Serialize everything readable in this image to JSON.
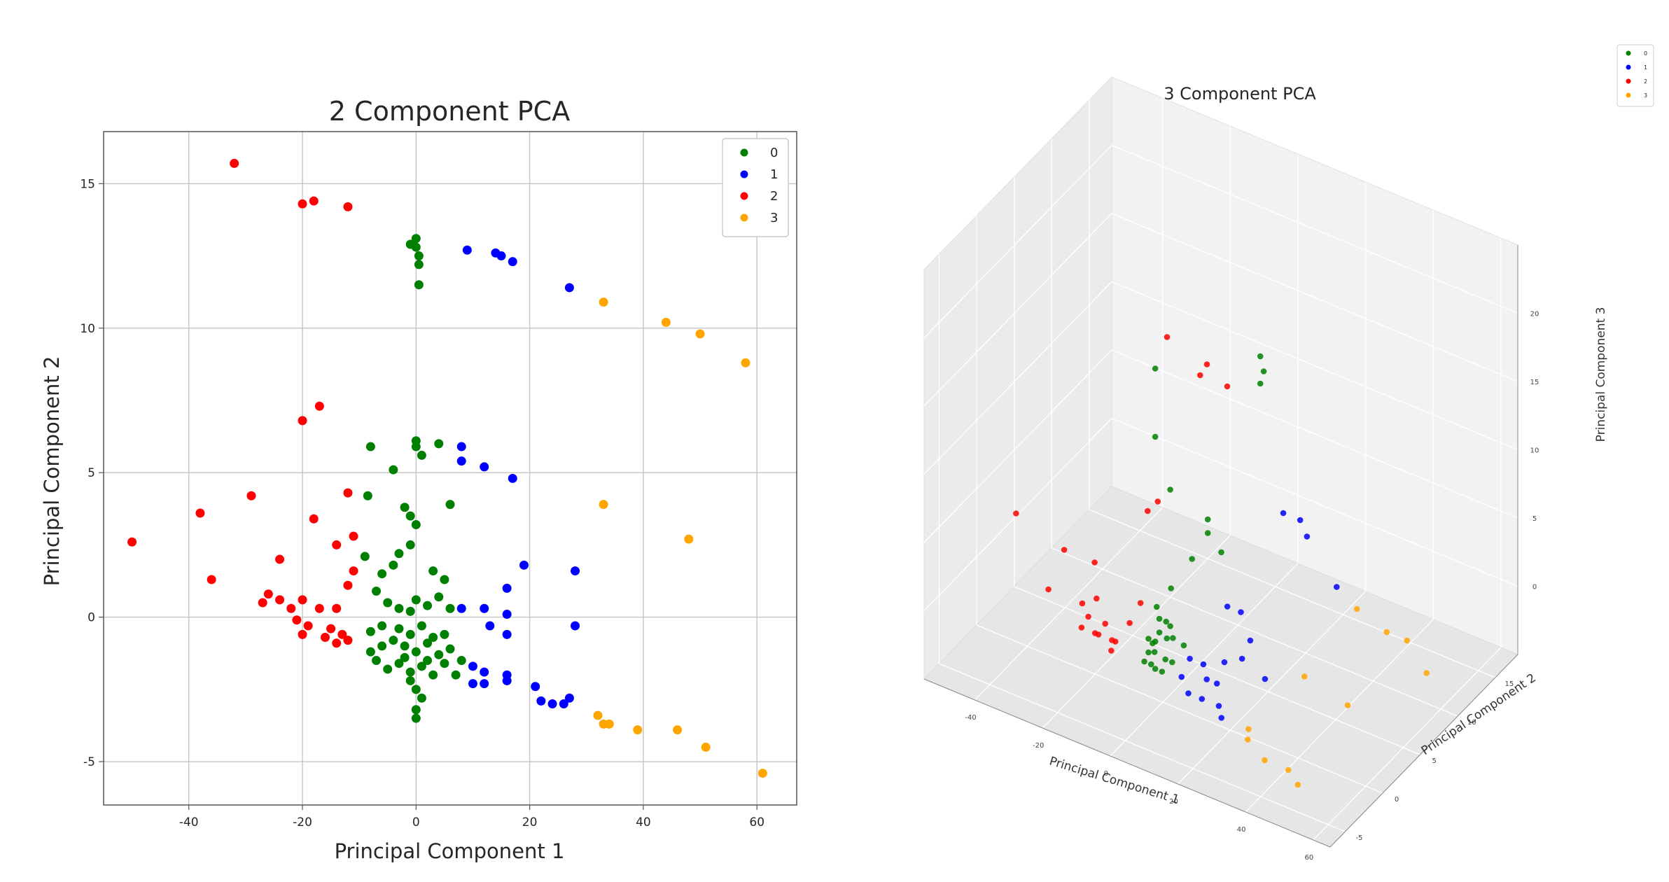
{
  "chart_data": [
    {
      "type": "scatter",
      "title": "2 Component PCA",
      "xlabel": "Principal Component 1",
      "ylabel": "Principal Component 2",
      "xlim": [
        -55,
        67
      ],
      "ylim": [
        -6.5,
        16.8
      ],
      "xticks": [
        -40,
        -20,
        0,
        20,
        40,
        60
      ],
      "yticks": [
        -5,
        0,
        5,
        10,
        15
      ],
      "xtick_labels": [
        "-40",
        "-20",
        "0",
        "20",
        "40",
        "60"
      ],
      "ytick_labels": [
        "-5",
        "0",
        "5",
        "10",
        "15"
      ],
      "grid": true,
      "legend_position": "top-right",
      "series": [
        {
          "name": "0",
          "color": "#008000",
          "points": [
            [
              0,
              13.1
            ],
            [
              0,
              12.8
            ],
            [
              0.5,
              12.5
            ],
            [
              0.5,
              12.2
            ],
            [
              0.5,
              11.5
            ],
            [
              -1,
              12.9
            ],
            [
              0,
              6.1
            ],
            [
              0,
              5.9
            ],
            [
              4,
              6
            ],
            [
              -8,
              5.9
            ],
            [
              -4,
              5.1
            ],
            [
              1,
              5.6
            ],
            [
              6,
              3.9
            ],
            [
              -8.5,
              4.2
            ],
            [
              -2,
              3.8
            ],
            [
              -1,
              3.5
            ],
            [
              0,
              3.2
            ],
            [
              -1,
              2.5
            ],
            [
              -3,
              2.2
            ],
            [
              -9,
              2.1
            ],
            [
              -6,
              1.5
            ],
            [
              -4,
              1.8
            ],
            [
              3,
              1.6
            ],
            [
              5,
              1.3
            ],
            [
              -7,
              0.9
            ],
            [
              -5,
              0.5
            ],
            [
              -3,
              0.3
            ],
            [
              -1,
              0.2
            ],
            [
              0,
              0.6
            ],
            [
              2,
              0.4
            ],
            [
              4,
              0.7
            ],
            [
              6,
              0.3
            ],
            [
              -8,
              -0.5
            ],
            [
              -6,
              -0.3
            ],
            [
              -4,
              -0.8
            ],
            [
              -2,
              -1
            ],
            [
              0,
              -1.2
            ],
            [
              2,
              -0.9
            ],
            [
              4,
              -1.3
            ],
            [
              6,
              -1.1
            ],
            [
              8,
              -1.5
            ],
            [
              -7,
              -1.5
            ],
            [
              -5,
              -1.8
            ],
            [
              -3,
              -1.6
            ],
            [
              -1,
              -1.9
            ],
            [
              1,
              -1.7
            ],
            [
              3,
              -2
            ],
            [
              5,
              -1.6
            ],
            [
              7,
              -2
            ],
            [
              -8,
              -1.2
            ],
            [
              -3,
              -0.4
            ],
            [
              -1,
              -0.6
            ],
            [
              1,
              -0.3
            ],
            [
              3,
              -0.7
            ],
            [
              0,
              -2.5
            ],
            [
              -1,
              -2.2
            ],
            [
              0,
              -3.2
            ],
            [
              0,
              -3.5
            ],
            [
              1,
              -2.8
            ],
            [
              -2,
              -1.4
            ],
            [
              2,
              -1.5
            ],
            [
              -6,
              -1
            ],
            [
              5,
              -0.6
            ]
          ]
        },
        {
          "name": "1",
          "color": "#0000ff",
          "points": [
            [
              9,
              12.7
            ],
            [
              14,
              12.6
            ],
            [
              15,
              12.5
            ],
            [
              17,
              12.3
            ],
            [
              27,
              11.4
            ],
            [
              8,
              5.9
            ],
            [
              8,
              5.4
            ],
            [
              12,
              5.2
            ],
            [
              17,
              4.8
            ],
            [
              19,
              1.8
            ],
            [
              28,
              1.6
            ],
            [
              16,
              1
            ],
            [
              8,
              0.3
            ],
            [
              12,
              0.3
            ],
            [
              16,
              0.1
            ],
            [
              13,
              -0.3
            ],
            [
              28,
              -0.3
            ],
            [
              16,
              -0.6
            ],
            [
              10,
              -1.7
            ],
            [
              12,
              -1.9
            ],
            [
              16,
              -2
            ],
            [
              10,
              -2.3
            ],
            [
              12,
              -2.3
            ],
            [
              16,
              -2.2
            ],
            [
              21,
              -2.4
            ],
            [
              22,
              -2.9
            ],
            [
              24,
              -3
            ],
            [
              26,
              -3
            ],
            [
              27,
              -2.8
            ]
          ]
        },
        {
          "name": "2",
          "color": "#ff0000",
          "points": [
            [
              -32,
              15.7
            ],
            [
              -20,
              14.3
            ],
            [
              -18,
              14.4
            ],
            [
              -12,
              14.2
            ],
            [
              -17,
              7.3
            ],
            [
              -20,
              6.8
            ],
            [
              -29,
              4.2
            ],
            [
              -38,
              3.6
            ],
            [
              -50,
              2.6
            ],
            [
              -12,
              4.3
            ],
            [
              -18,
              3.4
            ],
            [
              -14,
              2.5
            ],
            [
              -11,
              2.8
            ],
            [
              -24,
              2
            ],
            [
              -36,
              1.3
            ],
            [
              -11,
              1.6
            ],
            [
              -12,
              1.1
            ],
            [
              -26,
              0.8
            ],
            [
              -24,
              0.6
            ],
            [
              -27,
              0.5
            ],
            [
              -20,
              0.6
            ],
            [
              -22,
              0.3
            ],
            [
              -17,
              0.3
            ],
            [
              -14,
              0.3
            ],
            [
              -21,
              -0.1
            ],
            [
              -19,
              -0.3
            ],
            [
              -15,
              -0.4
            ],
            [
              -13,
              -0.6
            ],
            [
              -20,
              -0.6
            ],
            [
              -16,
              -0.7
            ],
            [
              -12,
              -0.8
            ],
            [
              -14,
              -0.9
            ]
          ]
        },
        {
          "name": "3",
          "color": "#ffa500",
          "points": [
            [
              33,
              10.9
            ],
            [
              44,
              10.2
            ],
            [
              50,
              9.8
            ],
            [
              58,
              8.8
            ],
            [
              33,
              3.9
            ],
            [
              48,
              2.7
            ],
            [
              32,
              -3.4
            ],
            [
              33,
              -3.7
            ],
            [
              34,
              -3.7
            ],
            [
              39,
              -3.9
            ],
            [
              46,
              -3.9
            ],
            [
              51,
              -4.5
            ],
            [
              61,
              -5.4
            ]
          ]
        }
      ]
    },
    {
      "type": "scatter",
      "title": "3 Component PCA",
      "xlabel": "Principal Component 1",
      "ylabel": "Principal Component 2",
      "zlabel": "Principal Component 3",
      "xlim": [
        -55,
        65
      ],
      "ylim": [
        -7,
        18
      ],
      "zlim": [
        -5,
        25
      ],
      "xticks": [
        -40,
        -20,
        0,
        20,
        40,
        60
      ],
      "yticks": [
        -5,
        0,
        5,
        10,
        15
      ],
      "zticks": [
        0,
        5,
        10,
        15,
        20
      ],
      "xtick_labels": [
        "-40",
        "-20",
        "0",
        "20",
        "40",
        "60"
      ],
      "ytick_labels": [
        "-5",
        "0",
        "5",
        "10",
        "15"
      ],
      "ztick_labels": [
        "0",
        "5",
        "10",
        "15",
        "20"
      ],
      "grid": true,
      "legend_position": "top-right",
      "series": [
        {
          "name": "0",
          "color": "#008000",
          "points": [
            [
              0,
              -1,
              20
            ],
            [
              0,
              -1,
              15
            ],
            [
              0,
              1,
              10
            ],
            [
              0,
              13,
              13
            ],
            [
              1,
              13,
              12
            ],
            [
              0,
              13,
              11
            ],
            [
              0,
              6,
              5
            ],
            [
              0,
              6,
              4
            ],
            [
              2,
              3,
              4
            ],
            [
              4,
              6,
              3
            ],
            [
              -2,
              2,
              2
            ],
            [
              -4,
              1,
              1
            ],
            [
              -1,
              0,
              0
            ],
            [
              0,
              -1,
              0
            ],
            [
              1,
              -2,
              -1
            ],
            [
              -2,
              -1,
              -1
            ],
            [
              2,
              -2,
              0
            ],
            [
              3,
              -1,
              -1
            ],
            [
              -3,
              0,
              -1
            ],
            [
              -1,
              -2,
              -1
            ],
            [
              1,
              0,
              1
            ],
            [
              0,
              -1,
              -2
            ],
            [
              2,
              -1,
              -2
            ],
            [
              -1,
              0,
              1
            ],
            [
              0,
              1,
              0
            ],
            [
              3,
              0,
              0
            ],
            [
              4,
              1,
              -1
            ],
            [
              5,
              -1,
              -1
            ],
            [
              -2,
              -1,
              0
            ],
            [
              -1,
              1,
              -1
            ]
          ]
        },
        {
          "name": "1",
          "color": "#0000ff",
          "points": [
            [
              9,
              12,
              3
            ],
            [
              14,
              12,
              3
            ],
            [
              16,
              12,
              2
            ],
            [
              27,
              11,
              0
            ],
            [
              8,
              5,
              0
            ],
            [
              12,
              5,
              0
            ],
            [
              17,
              4,
              -1
            ],
            [
              19,
              2,
              -1
            ],
            [
              28,
              1,
              -1
            ],
            [
              16,
              1,
              -1
            ],
            [
              8,
              0,
              -1
            ],
            [
              12,
              0,
              -1
            ],
            [
              16,
              0,
              -2
            ],
            [
              13,
              0,
              -2
            ],
            [
              10,
              -2,
              -1
            ],
            [
              12,
              -2,
              -2
            ],
            [
              16,
              -2,
              -2
            ],
            [
              21,
              -2,
              -2
            ],
            [
              24,
              -3,
              -2
            ]
          ]
        },
        {
          "name": "2",
          "color": "#ff0000",
          "points": [
            [
              -32,
              15,
              10
            ],
            [
              -20,
              14,
              9
            ],
            [
              -18,
              14,
              10
            ],
            [
              -12,
              14,
              9
            ],
            [
              -17,
              7,
              4
            ],
            [
              -20,
              7,
              3
            ],
            [
              -50,
              3,
              2
            ],
            [
              -38,
              4,
              0
            ],
            [
              -29,
              4,
              0
            ],
            [
              -24,
              2,
              -1
            ],
            [
              -26,
              1,
              -1
            ],
            [
              -22,
              0,
              -1
            ],
            [
              -20,
              0,
              -2
            ],
            [
              -17,
              0,
              -1
            ],
            [
              -14,
              0,
              -2
            ],
            [
              -19,
              0,
              -2
            ],
            [
              -15,
              0,
              -2
            ],
            [
              -12,
              1,
              -1
            ],
            [
              -11,
              2,
              0
            ],
            [
              -36,
              1,
              -1
            ],
            [
              -24,
              0,
              -2
            ],
            [
              -13,
              -1,
              -2
            ]
          ]
        },
        {
          "name": "3",
          "color": "#ffa500",
          "points": [
            [
              33,
              11,
              -1
            ],
            [
              44,
              10,
              -1
            ],
            [
              50,
              10,
              -1
            ],
            [
              58,
              9,
              -2
            ],
            [
              33,
              4,
              -2
            ],
            [
              48,
              3,
              -2
            ],
            [
              32,
              -3,
              -2
            ],
            [
              34,
              -4,
              -2
            ],
            [
              39,
              -4,
              -3
            ],
            [
              46,
              -4,
              -3
            ],
            [
              51,
              -5,
              -3
            ]
          ]
        }
      ]
    }
  ]
}
